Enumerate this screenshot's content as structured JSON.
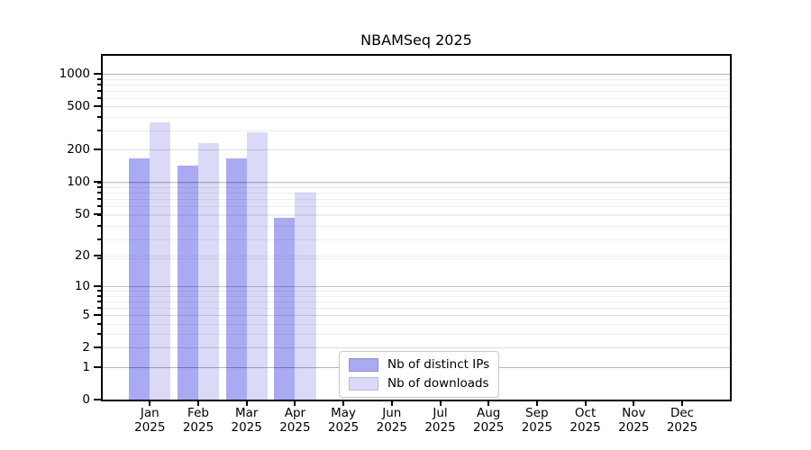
{
  "chart_data": {
    "type": "bar",
    "title": "NBAMSeq 2025",
    "x_categories": [
      "Jan",
      "Feb",
      "Mar",
      "Apr",
      "May",
      "Jun",
      "Jul",
      "Aug",
      "Sep",
      "Oct",
      "Nov",
      "Dec"
    ],
    "x_year_label": "2025",
    "series": [
      {
        "name": "Nb of distinct IPs",
        "color": "#aaaaf2",
        "values": [
          165,
          143,
          166,
          46,
          0,
          0,
          0,
          0,
          0,
          0,
          0,
          0
        ]
      },
      {
        "name": "Nb of downloads",
        "color": "#dadaf8",
        "values": [
          356,
          231,
          291,
          79,
          0,
          0,
          0,
          0,
          0,
          0,
          0,
          0
        ]
      }
    ],
    "y_scale": "log10(value+1)",
    "y_ticks": [
      0,
      1,
      2,
      5,
      10,
      20,
      50,
      100,
      200,
      500,
      1000
    ],
    "y_major_ticks": [
      1,
      10,
      100,
      1000
    ],
    "y_top_value": 1465,
    "grid": "horizontal major+minor gridlines drawn over bars",
    "legend_position": "inside, lower center"
  },
  "legend": {
    "items": [
      {
        "label": "Nb of distinct IPs",
        "color": "#aaaaf2"
      },
      {
        "label": "Nb of downloads",
        "color": "#dadaf8"
      }
    ]
  },
  "colors": {
    "bar_distinct_ips": "#aaaaf2",
    "bar_downloads": "#dadaf8",
    "axis": "#000000",
    "grid_major": "rgba(0,0,0,0.24)",
    "grid_minor": "rgba(0,0,0,0.07)",
    "legend_border": "#c9c9c9"
  }
}
